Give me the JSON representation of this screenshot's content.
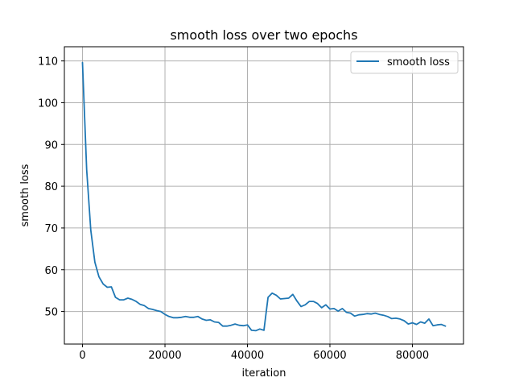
{
  "chart_data": {
    "type": "line",
    "title": "smooth loss over two epochs",
    "xlabel": "iteration",
    "ylabel": "smooth loss",
    "xlim": [
      -4400,
      92400
    ],
    "ylim": [
      42.2,
      113.4
    ],
    "xticks": [
      0,
      20000,
      40000,
      60000,
      80000
    ],
    "yticks": [
      50,
      60,
      70,
      80,
      90,
      100,
      110
    ],
    "grid": true,
    "legend": "top-right",
    "colors": {
      "line": "#1f77b4",
      "grid": "#b0b0b0"
    },
    "series": [
      {
        "name": "smooth loss",
        "x": [
          0,
          1000,
          2000,
          3000,
          4000,
          5000,
          6000,
          7000,
          8000,
          9000,
          10000,
          11000,
          12000,
          13000,
          14000,
          15000,
          16000,
          17000,
          18000,
          19000,
          20000,
          21000,
          22000,
          23000,
          24000,
          25000,
          26000,
          27000,
          28000,
          29000,
          30000,
          31000,
          32000,
          33000,
          34000,
          35000,
          36000,
          37000,
          38000,
          39000,
          40000,
          41000,
          42000,
          43000,
          44000,
          45000,
          46000,
          47000,
          48000,
          49000,
          50000,
          51000,
          52000,
          53000,
          54000,
          55000,
          56000,
          57000,
          58000,
          59000,
          60000,
          61000,
          62000,
          63000,
          64000,
          65000,
          66000,
          67000,
          68000,
          69000,
          70000,
          71000,
          72000,
          73000,
          74000,
          75000,
          76000,
          77000,
          78000,
          79000,
          80000,
          81000,
          82000,
          83000,
          84000,
          85000,
          86000,
          87000,
          88000
        ],
        "y": [
          109.6,
          84.0,
          69.5,
          61.8,
          58.3,
          56.6,
          55.8,
          55.9,
          53.4,
          52.8,
          52.8,
          53.2,
          52.9,
          52.4,
          51.7,
          51.4,
          50.7,
          50.5,
          50.2,
          50.0,
          49.3,
          48.8,
          48.5,
          48.5,
          48.6,
          48.8,
          48.6,
          48.6,
          48.8,
          48.2,
          47.9,
          48.0,
          47.5,
          47.4,
          46.5,
          46.5,
          46.7,
          47.0,
          46.7,
          46.6,
          46.8,
          45.5,
          45.4,
          45.8,
          45.5,
          53.4,
          54.4,
          53.9,
          53.0,
          53.1,
          53.2,
          54.1,
          52.5,
          51.2,
          51.6,
          52.4,
          52.4,
          51.9,
          50.9,
          51.6,
          50.6,
          50.7,
          50.1,
          50.7,
          49.8,
          49.6,
          48.9,
          49.2,
          49.3,
          49.5,
          49.4,
          49.6,
          49.3,
          49.1,
          48.8,
          48.3,
          48.4,
          48.2,
          47.8,
          47.0,
          47.3,
          46.9,
          47.5,
          47.2,
          48.2,
          46.6,
          46.8,
          46.9,
          46.5
        ]
      }
    ]
  }
}
